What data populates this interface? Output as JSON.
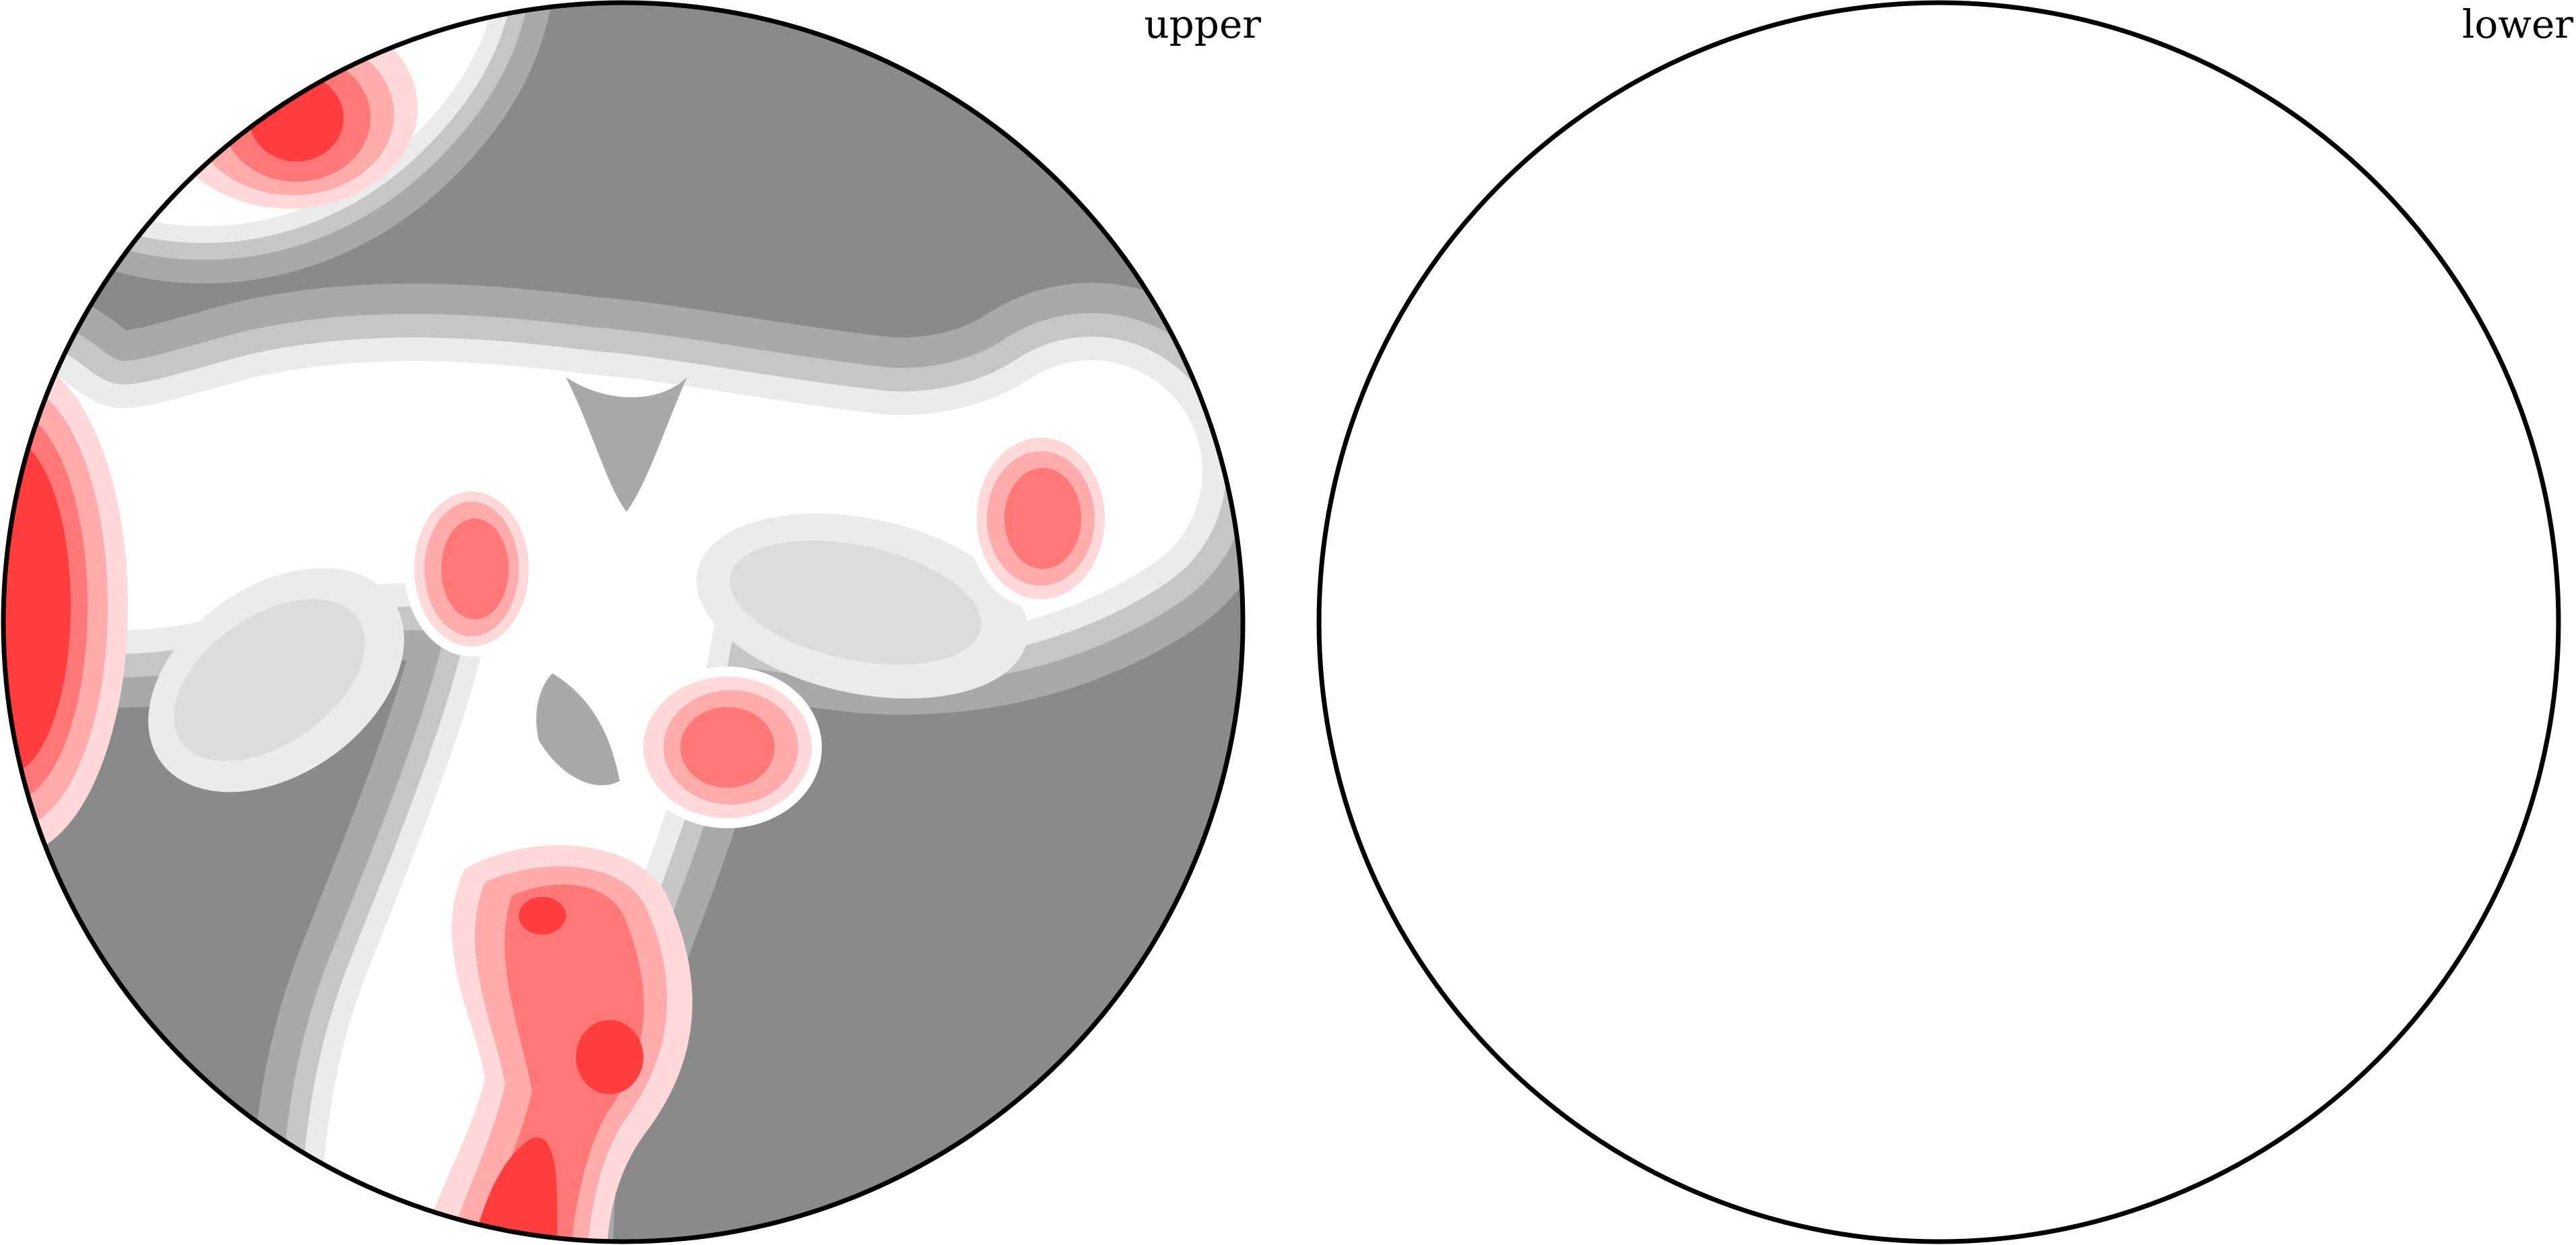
{
  "figure": {
    "panels": [
      {
        "label": "upper",
        "state": "filled contour density map"
      },
      {
        "label": "lower",
        "state": "empty"
      }
    ]
  },
  "colors": {
    "background_gray": "#8a8a8a",
    "level_1": "#a9a9a9",
    "level_2": "#c6c6c6",
    "level_3": "#ebebeb",
    "level_white": "#ffffff",
    "level_inner_gray": "#dcdcdc",
    "level_5": "#ffd9d9",
    "level_6": "#ffabab",
    "level_7": "#ff7878",
    "level_8": "#ff3d3d",
    "outline": "#000000"
  }
}
